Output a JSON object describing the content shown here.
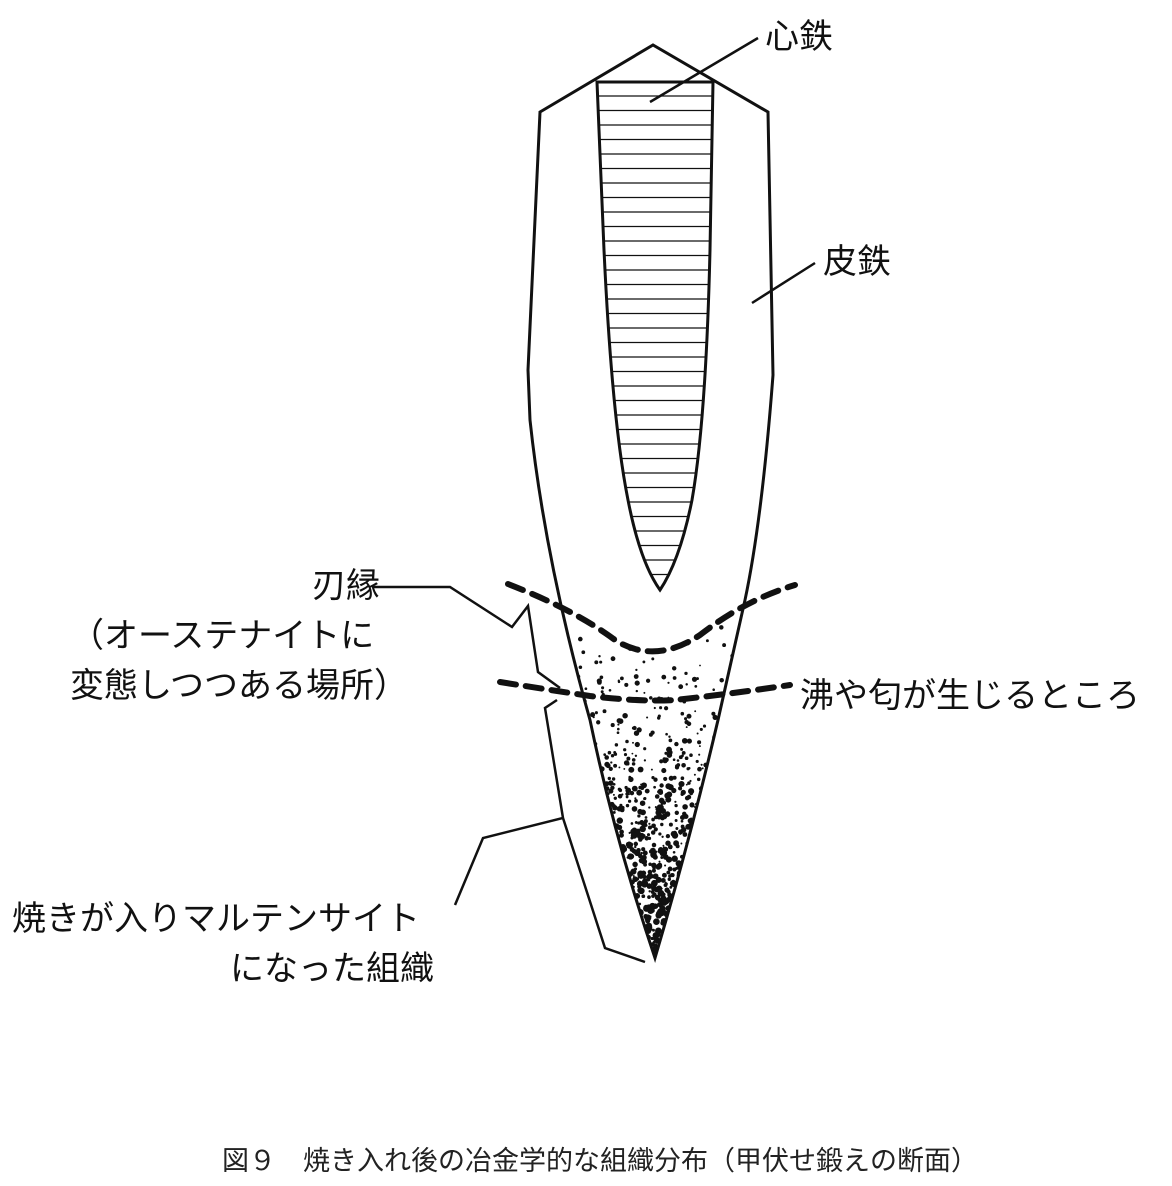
{
  "labels": {
    "core_iron": "心鉄",
    "skin_iron": "皮鉄",
    "blade_edge_line1": "刃縁",
    "blade_edge_line2": "（オーステナイトに",
    "blade_edge_line3": "変態しつつある場所）",
    "nie_nioi": "沸や匂が生じるところ",
    "martensite_line1": "焼きが入りマルテンサイト",
    "martensite_line2": "になった組織"
  },
  "caption": "図９　焼き入れ後の冶金学的な組織分布（甲伏せ鍛えの断面）"
}
